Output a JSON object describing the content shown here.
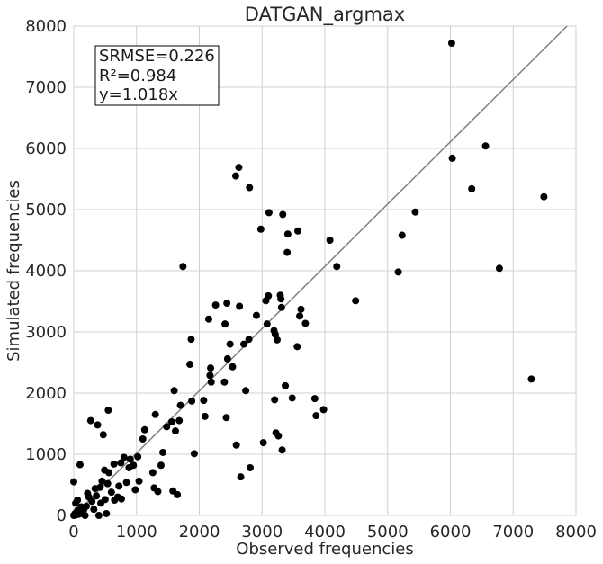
{
  "chart_data": {
    "type": "scatter",
    "title": "DATGAN_argmax",
    "xlabel": "Observed frequencies",
    "ylabel": "Simulated frequencies",
    "xlim": [
      0,
      8000
    ],
    "ylim": [
      0,
      8000
    ],
    "xticks": [
      "0",
      "1000",
      "2000",
      "3000",
      "4000",
      "5000",
      "6000",
      "7000",
      "8000"
    ],
    "yticks": [
      "0",
      "1000",
      "2000",
      "3000",
      "4000",
      "5000",
      "6000",
      "7000",
      "8000"
    ],
    "grid": true,
    "annotation": {
      "lines": [
        "SRMSE=0.226",
        "R²=0.984",
        "y=1.018x"
      ],
      "placement": "top-left"
    },
    "fit_line": {
      "slope": 1.018,
      "color": "#808080"
    },
    "marker_color": "#000000",
    "points": [
      [
        0,
        0
      ],
      [
        20,
        30
      ],
      [
        40,
        10
      ],
      [
        60,
        80
      ],
      [
        80,
        20
      ],
      [
        100,
        60
      ],
      [
        120,
        140
      ],
      [
        140,
        30
      ],
      [
        160,
        100
      ],
      [
        30,
        200
      ],
      [
        60,
        250
      ],
      [
        0,
        550
      ],
      [
        100,
        830
      ],
      [
        180,
        0
      ],
      [
        200,
        150
      ],
      [
        220,
        360
      ],
      [
        240,
        300
      ],
      [
        270,
        1550
      ],
      [
        290,
        230
      ],
      [
        320,
        100
      ],
      [
        340,
        440
      ],
      [
        360,
        320
      ],
      [
        380,
        1480
      ],
      [
        400,
        0
      ],
      [
        420,
        460
      ],
      [
        430,
        200
      ],
      [
        450,
        560
      ],
      [
        470,
        1320
      ],
      [
        490,
        740
      ],
      [
        500,
        260
      ],
      [
        520,
        30
      ],
      [
        540,
        520
      ],
      [
        550,
        1720
      ],
      [
        560,
        700
      ],
      [
        600,
        380
      ],
      [
        640,
        840
      ],
      [
        650,
        250
      ],
      [
        700,
        300
      ],
      [
        720,
        480
      ],
      [
        750,
        860
      ],
      [
        760,
        270
      ],
      [
        800,
        950
      ],
      [
        840,
        540
      ],
      [
        880,
        780
      ],
      [
        900,
        920
      ],
      [
        950,
        820
      ],
      [
        980,
        420
      ],
      [
        1020,
        960
      ],
      [
        1040,
        560
      ],
      [
        1100,
        1250
      ],
      [
        1130,
        1400
      ],
      [
        1260,
        700
      ],
      [
        1280,
        450
      ],
      [
        1300,
        1650
      ],
      [
        1340,
        390
      ],
      [
        1390,
        820
      ],
      [
        1420,
        1030
      ],
      [
        1480,
        1450
      ],
      [
        1560,
        1530
      ],
      [
        1580,
        400
      ],
      [
        1600,
        2040
      ],
      [
        1620,
        1380
      ],
      [
        1650,
        340
      ],
      [
        1680,
        1550
      ],
      [
        1700,
        1800
      ],
      [
        1740,
        4070
      ],
      [
        1850,
        2470
      ],
      [
        1870,
        2880
      ],
      [
        1880,
        1870
      ],
      [
        1920,
        1010
      ],
      [
        2070,
        1880
      ],
      [
        2090,
        1620
      ],
      [
        2150,
        3210
      ],
      [
        2170,
        2290
      ],
      [
        2180,
        2410
      ],
      [
        2190,
        2180
      ],
      [
        2260,
        3440
      ],
      [
        2400,
        2180
      ],
      [
        2410,
        3130
      ],
      [
        2430,
        1600
      ],
      [
        2440,
        3470
      ],
      [
        2450,
        2560
      ],
      [
        2490,
        2800
      ],
      [
        2530,
        2430
      ],
      [
        2580,
        5550
      ],
      [
        2590,
        1150
      ],
      [
        2630,
        5690
      ],
      [
        2640,
        3420
      ],
      [
        2660,
        630
      ],
      [
        2710,
        2800
      ],
      [
        2740,
        2040
      ],
      [
        2790,
        2880
      ],
      [
        2800,
        5360
      ],
      [
        2810,
        780
      ],
      [
        2910,
        3270
      ],
      [
        2980,
        4680
      ],
      [
        3020,
        1190
      ],
      [
        3060,
        3510
      ],
      [
        3080,
        3130
      ],
      [
        3100,
        3590
      ],
      [
        3110,
        4950
      ],
      [
        3190,
        3020
      ],
      [
        3200,
        1890
      ],
      [
        3210,
        2960
      ],
      [
        3220,
        1350
      ],
      [
        3240,
        2870
      ],
      [
        3260,
        1300
      ],
      [
        3290,
        3600
      ],
      [
        3300,
        3540
      ],
      [
        3310,
        3400
      ],
      [
        3320,
        1070
      ],
      [
        3330,
        4920
      ],
      [
        3370,
        2120
      ],
      [
        3400,
        4300
      ],
      [
        3410,
        4600
      ],
      [
        3480,
        1920
      ],
      [
        3560,
        2760
      ],
      [
        3570,
        4650
      ],
      [
        3600,
        3260
      ],
      [
        3620,
        3370
      ],
      [
        3690,
        3140
      ],
      [
        3840,
        1910
      ],
      [
        3860,
        1630
      ],
      [
        3980,
        1730
      ],
      [
        4080,
        4500
      ],
      [
        4190,
        4070
      ],
      [
        4490,
        3510
      ],
      [
        5170,
        3980
      ],
      [
        5230,
        4580
      ],
      [
        5440,
        4960
      ],
      [
        6020,
        7720
      ],
      [
        6030,
        5840
      ],
      [
        6340,
        5340
      ],
      [
        6560,
        6040
      ],
      [
        6780,
        4040
      ],
      [
        7290,
        2230
      ],
      [
        7490,
        5210
      ]
    ]
  }
}
